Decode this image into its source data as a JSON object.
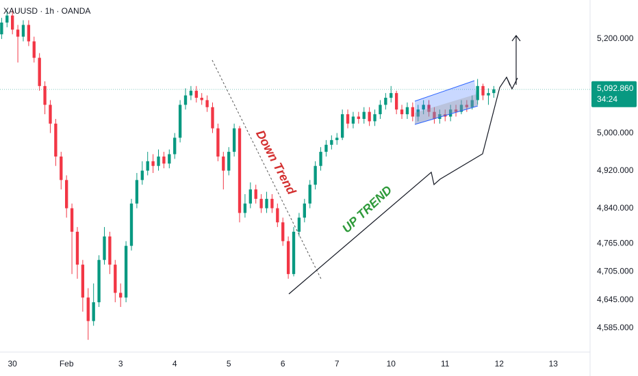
{
  "chart_data": {
    "type": "candlestick",
    "title": "XAUUSD · 1h · OANDA",
    "up_color": "#089981",
    "down_color": "#f23645",
    "grid": false,
    "xlim": [
      -0.23,
      10.68
    ],
    "ylim": [
      4534,
      5283
    ],
    "xticks": [
      {
        "value": 0,
        "label": "30"
      },
      {
        "value": 1,
        "label": "Feb"
      },
      {
        "value": 2,
        "label": "3"
      },
      {
        "value": 3,
        "label": "4"
      },
      {
        "value": 4,
        "label": "5"
      },
      {
        "value": 5,
        "label": "6"
      },
      {
        "value": 6,
        "label": "7"
      },
      {
        "value": 7,
        "label": "10"
      },
      {
        "value": 8,
        "label": "11"
      },
      {
        "value": 9,
        "label": "12"
      },
      {
        "value": 10,
        "label": "13"
      }
    ],
    "yticks": [
      {
        "value": 5200,
        "label": "5,200.000"
      },
      {
        "value": 5000,
        "label": "5,000.000"
      },
      {
        "value": 4920,
        "label": "4,920.000"
      },
      {
        "value": 4840,
        "label": "4,840.000"
      },
      {
        "value": 4765,
        "label": "4,765.000"
      },
      {
        "value": 4705,
        "label": "4,705.000"
      },
      {
        "value": 4645,
        "label": "4,645.000"
      },
      {
        "value": 4585,
        "label": "4,585.000"
      }
    ],
    "last_price": {
      "value": 5092.86,
      "label": "5,092.860"
    },
    "countdown": "34:24",
    "annotations": [
      "Down Trend",
      "UP TREND"
    ],
    "x": [
      -0.2,
      -0.1,
      0,
      0.1,
      0.2,
      0.3,
      0.4,
      0.5,
      0.6,
      0.7,
      0.8,
      0.9,
      1,
      1.1,
      1.2,
      1.3,
      1.4,
      1.5,
      1.6,
      1.7,
      1.8,
      1.9,
      2,
      2.1,
      2.2,
      2.3,
      2.4,
      2.5,
      2.6,
      2.7,
      2.8,
      2.9,
      3,
      3.1,
      3.2,
      3.3,
      3.4,
      3.5,
      3.6,
      3.7,
      3.8,
      3.9,
      4,
      4.1,
      4.2,
      4.3,
      4.4,
      4.5,
      4.6,
      4.7,
      4.8,
      4.9,
      5,
      5.1,
      5.2,
      5.3,
      5.4,
      5.5,
      5.6,
      5.7,
      5.8,
      5.9,
      6,
      6.1,
      6.2,
      6.3,
      6.4,
      6.5,
      6.6,
      6.7,
      6.8,
      6.9,
      7,
      7.1,
      7.2,
      7.3,
      7.4,
      7.5,
      7.6,
      7.7,
      7.8,
      7.9,
      8,
      8.1,
      8.2,
      8.3,
      8.4,
      8.5,
      8.6,
      8.7,
      8.8,
      8.9
    ],
    "ohlc": [
      [
        5210,
        5245,
        5200,
        5235
      ],
      [
        5235,
        5260,
        5225,
        5250
      ],
      [
        5250,
        5262,
        5210,
        5220
      ],
      [
        5220,
        5230,
        5150,
        5205
      ],
      [
        5205,
        5240,
        5195,
        5230
      ],
      [
        5230,
        5240,
        5185,
        5195
      ],
      [
        5195,
        5205,
        5150,
        5160
      ],
      [
        5160,
        5170,
        5090,
        5100
      ],
      [
        5100,
        5110,
        5040,
        5060
      ],
      [
        5060,
        5070,
        5000,
        5020
      ],
      [
        5020,
        5030,
        4930,
        4950
      ],
      [
        4950,
        4960,
        4880,
        4900
      ],
      [
        4900,
        4910,
        4820,
        4840
      ],
      [
        4840,
        4850,
        4700,
        4790
      ],
      [
        4790,
        4800,
        4690,
        4720
      ],
      [
        4720,
        4730,
        4620,
        4650
      ],
      [
        4650,
        4670,
        4560,
        4600
      ],
      [
        4600,
        4680,
        4590,
        4640
      ],
      [
        4640,
        4740,
        4630,
        4730
      ],
      [
        4730,
        4800,
        4720,
        4780
      ],
      [
        4780,
        4790,
        4700,
        4720
      ],
      [
        4720,
        4730,
        4640,
        4660
      ],
      [
        4660,
        4680,
        4630,
        4650
      ],
      [
        4650,
        4770,
        4640,
        4760
      ],
      [
        4760,
        4860,
        4750,
        4850
      ],
      [
        4850,
        4915,
        4840,
        4900
      ],
      [
        4900,
        4940,
        4890,
        4920
      ],
      [
        4920,
        4960,
        4910,
        4940
      ],
      [
        4940,
        4955,
        4915,
        4930
      ],
      [
        4930,
        4965,
        4920,
        4950
      ],
      [
        4950,
        4960,
        4925,
        4935
      ],
      [
        4935,
        4965,
        4925,
        4955
      ],
      [
        4955,
        5000,
        4945,
        4990
      ],
      [
        4990,
        5070,
        4980,
        5060
      ],
      [
        5060,
        5095,
        5050,
        5080
      ],
      [
        5080,
        5100,
        5070,
        5090
      ],
      [
        5090,
        5100,
        5065,
        5075
      ],
      [
        5075,
        5085,
        5060,
        5070
      ],
      [
        5070,
        5080,
        5045,
        5055
      ],
      [
        5055,
        5065,
        5000,
        5010
      ],
      [
        5010,
        5020,
        4940,
        4950
      ],
      [
        4950,
        4960,
        4880,
        4920
      ],
      [
        4920,
        4970,
        4910,
        4960
      ],
      [
        4960,
        5020,
        4950,
        5010
      ],
      [
        5010,
        5015,
        4810,
        4830
      ],
      [
        4830,
        4870,
        4820,
        4850
      ],
      [
        4850,
        4895,
        4840,
        4880
      ],
      [
        4880,
        4890,
        4850,
        4860
      ],
      [
        4860,
        4870,
        4830,
        4840
      ],
      [
        4840,
        4875,
        4830,
        4860
      ],
      [
        4860,
        4870,
        4830,
        4840
      ],
      [
        4840,
        4850,
        4800,
        4810
      ],
      [
        4810,
        4820,
        4760,
        4770
      ],
      [
        4770,
        4780,
        4690,
        4700
      ],
      [
        4700,
        4800,
        4695,
        4790
      ],
      [
        4790,
        4830,
        4780,
        4820
      ],
      [
        4820,
        4860,
        4810,
        4850
      ],
      [
        4850,
        4900,
        4840,
        4890
      ],
      [
        4890,
        4940,
        4880,
        4930
      ],
      [
        4930,
        4970,
        4920,
        4960
      ],
      [
        4960,
        4985,
        4950,
        4975
      ],
      [
        4975,
        4995,
        4965,
        4985
      ],
      [
        4985,
        5000,
        4975,
        4990
      ],
      [
        4990,
        5050,
        4985,
        5040
      ],
      [
        5040,
        5050,
        5010,
        5020
      ],
      [
        5020,
        5045,
        5010,
        5035
      ],
      [
        5035,
        5045,
        5020,
        5030
      ],
      [
        5030,
        5055,
        5020,
        5045
      ],
      [
        5045,
        5055,
        5015,
        5025
      ],
      [
        5025,
        5050,
        5015,
        5040
      ],
      [
        5040,
        5070,
        5030,
        5060
      ],
      [
        5060,
        5085,
        5050,
        5075
      ],
      [
        5075,
        5100,
        5065,
        5085
      ],
      [
        5085,
        5090,
        5040,
        5050
      ],
      [
        5050,
        5060,
        5030,
        5040
      ],
      [
        5040,
        5065,
        5030,
        5055
      ],
      [
        5055,
        5065,
        5025,
        5035
      ],
      [
        5035,
        5060,
        5025,
        5050
      ],
      [
        5050,
        5070,
        5040,
        5060
      ],
      [
        5060,
        5070,
        5035,
        5045
      ],
      [
        5045,
        5055,
        5020,
        5030
      ],
      [
        5030,
        5050,
        5020,
        5040
      ],
      [
        5040,
        5050,
        5025,
        5035
      ],
      [
        5035,
        5060,
        5025,
        5050
      ],
      [
        5050,
        5060,
        5035,
        5045
      ],
      [
        5045,
        5070,
        5040,
        5060
      ],
      [
        5060,
        5070,
        5045,
        5055
      ],
      [
        5055,
        5080,
        5050,
        5070
      ],
      [
        5070,
        5115,
        5060,
        5100
      ],
      [
        5100,
        5105,
        5070,
        5080
      ],
      [
        5080,
        5095,
        5060,
        5085
      ],
      [
        5085,
        5100,
        5075,
        5093
      ]
    ]
  }
}
